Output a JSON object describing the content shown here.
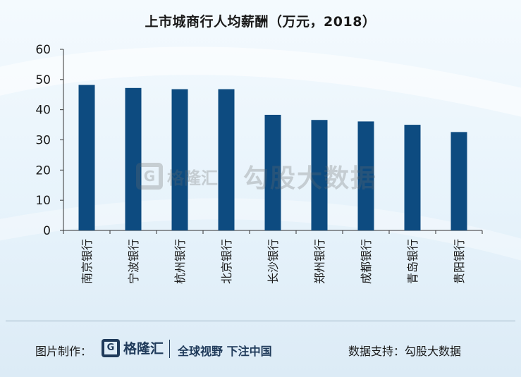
{
  "chart_data": {
    "type": "bar",
    "title": "上市城商行人均薪酬（万元，2018）",
    "categories": [
      "南京银行",
      "宁波银行",
      "杭州银行",
      "北京银行",
      "长沙银行",
      "郑州银行",
      "成都银行",
      "青岛银行",
      "贵阳银行"
    ],
    "values": [
      48.2,
      47.2,
      46.8,
      46.8,
      38.3,
      36.6,
      36.1,
      35.0,
      32.6
    ],
    "ylim": [
      0,
      60
    ],
    "yticks": [
      0,
      10,
      20,
      30,
      40,
      50,
      60
    ],
    "grid": false,
    "bar_color": "#0d4b80"
  },
  "watermark": {
    "logo_letter": "G",
    "brand": "格隆汇",
    "source": "勾股大数据"
  },
  "footer": {
    "left_label": "图片制作：",
    "logo_letter": "G",
    "logo_text": "格隆汇",
    "slogan": "全球视野 下注中国",
    "right_label": "数据支持：勾股大数据"
  },
  "colors": {
    "accent": "#0d4b80",
    "footer_brand": "#1f3a5a"
  }
}
